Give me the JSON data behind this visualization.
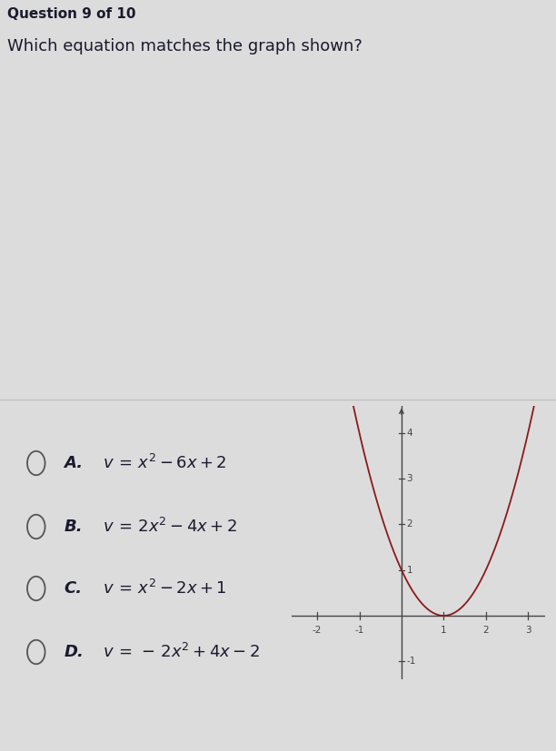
{
  "header": "Question 9 of 10",
  "question": "Which equation matches the graph shown?",
  "options": [
    {
      "label": "A.",
      "formula": "v\\,=\\,x^2-6x+2"
    },
    {
      "label": "B.",
      "formula": "v\\,=\\,2x^2-4x+2"
    },
    {
      "label": "C.",
      "formula": "v\\,=\\,x^2-2x+1"
    },
    {
      "label": "D.",
      "formula": "v\\,=\\,-\\,2x^2+4x-2"
    }
  ],
  "curve_color": "#8B1A1A",
  "axis_color": "#444444",
  "bg_color": "#dcdcdc",
  "text_color": "#1a1a2e",
  "circle_color": "#555555",
  "xlim": [
    -2.6,
    3.4
  ],
  "ylim": [
    -1.4,
    4.6
  ],
  "xtick_labels": [
    -2,
    -1,
    1,
    2,
    3
  ],
  "ytick_labels": [
    -1,
    1,
    2,
    3,
    4
  ]
}
